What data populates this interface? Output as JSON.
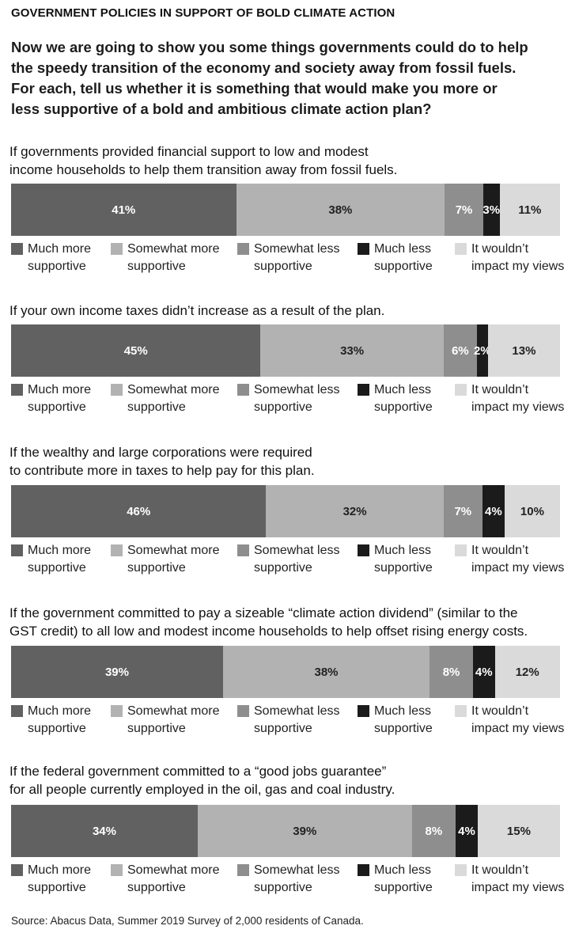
{
  "header": {
    "title": "GOVERNMENT POLICIES IN SUPPORT OF BOLD CLIMATE ACTION"
  },
  "intro": {
    "line1": "Now we are going to show you some things governments could do to help",
    "line2": "the speedy transition of the economy and society away from fossil fuels.",
    "line3": "For each, tell us whether it is something that would make you more or",
    "line4": "less supportive of a bold and ambitious climate action plan?"
  },
  "colors": {
    "much_more": "#616161",
    "somewhat_more": "#b2b2b2",
    "somewhat_less": "#8e8e8e",
    "much_less": "#1b1b1b",
    "no_impact": "#dadada"
  },
  "chart_data": {
    "type": "bar",
    "orientation": "horizontal-stacked",
    "series": [
      {
        "name": "Much more supportive",
        "label1": "Much more",
        "label2": "supportive"
      },
      {
        "name": "Somewhat more supportive",
        "label1": "Somewhat more",
        "label2": "supportive"
      },
      {
        "name": "Somewhat less supportive",
        "label1": "Somewhat less",
        "label2": "supportive"
      },
      {
        "name": "Much less supportive",
        "label1": "Much less",
        "label2": "supportive"
      },
      {
        "name": "It wouldn't impact my views",
        "label1": "It wouldn’t",
        "label2": "impact my views"
      }
    ],
    "questions": [
      {
        "line1": "If governments provided financial support to low and modest",
        "line2": "income households to help them transition away from fossil fuels.",
        "values": [
          41,
          38,
          7,
          3,
          11
        ],
        "labels": [
          "41%",
          "38%",
          "7%",
          "3%",
          "11%"
        ]
      },
      {
        "line1": "If your own income taxes didn’t increase as a result of the plan.",
        "line2": "",
        "values": [
          45,
          33,
          6,
          2,
          13
        ],
        "labels": [
          "45%",
          "33%",
          "6%",
          "2%",
          "13%"
        ]
      },
      {
        "line1": "If the wealthy and large corporations were required",
        "line2": "to contribute more in taxes to help pay for this plan.",
        "values": [
          46,
          32,
          7,
          4,
          10
        ],
        "labels": [
          "46%",
          "32%",
          "7%",
          "4%",
          "10%"
        ]
      },
      {
        "line1": "If the government committed to pay a sizeable “climate action dividend” (similar to the",
        "line2": "GST credit) to all low and modest income households to help offset rising energy costs.",
        "values": [
          39,
          38,
          8,
          4,
          12
        ],
        "labels": [
          "39%",
          "38%",
          "8%",
          "4%",
          "12%"
        ]
      },
      {
        "line1": "If the federal government committed to a “good jobs guarantee”",
        "line2": "for all people currently employed in the oil, gas and coal industry.",
        "values": [
          34,
          39,
          8,
          4,
          15
        ],
        "labels": [
          "34%",
          "39%",
          "8%",
          "4%",
          "15%"
        ]
      }
    ]
  },
  "footer": {
    "source": "Source: Abacus Data, Summer 2019 Survey of 2,000 residents of Canada."
  }
}
